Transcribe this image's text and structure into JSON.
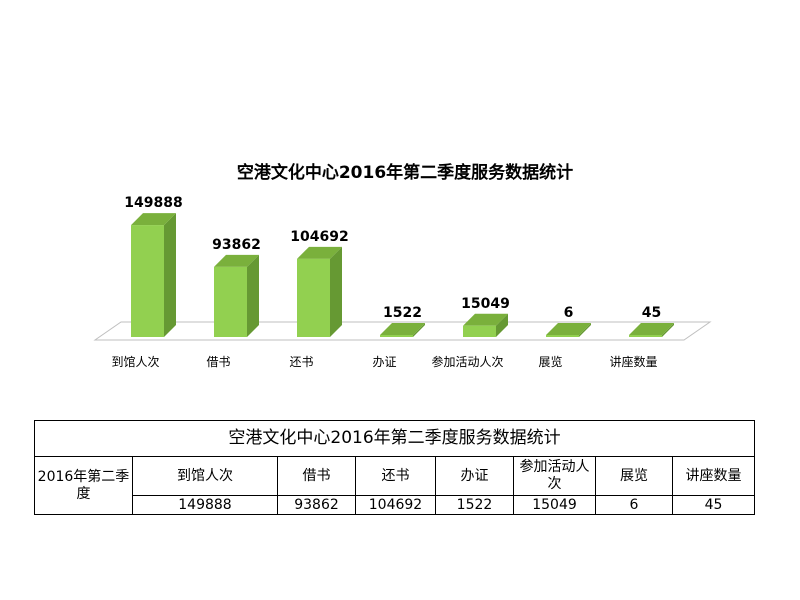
{
  "chart_data": {
    "type": "bar",
    "title": "空港文化中心2016年第二季度服务数据统计",
    "categories": [
      "到馆人次",
      "借书",
      "还书",
      "办证",
      "参加活动人次",
      "展览",
      "讲座数量"
    ],
    "values": [
      149888,
      93862,
      104692,
      1522,
      15049,
      6,
      45
    ],
    "value_labels": [
      "149888",
      "93862",
      "104692",
      "1522",
      "15049",
      "6",
      "45"
    ],
    "ylim": [
      0,
      150000
    ],
    "grid": false,
    "legend": "none",
    "style": "3d-column",
    "colors": {
      "bar_front": "#92d050",
      "bar_side": "#669933",
      "bar_top": "#7ab03c",
      "floor_stroke": "#bfbfbf"
    }
  },
  "table": {
    "title": "空港文化中心2016年第二季度服务数据统计",
    "period": "2016年第二季度",
    "headers": [
      "到馆人次",
      "借书",
      "还书",
      "办证",
      "参加活动人次",
      "展览",
      "讲座数量"
    ],
    "values": [
      "149888",
      "93862",
      "104692",
      "1522",
      "15049",
      "6",
      "45"
    ]
  }
}
